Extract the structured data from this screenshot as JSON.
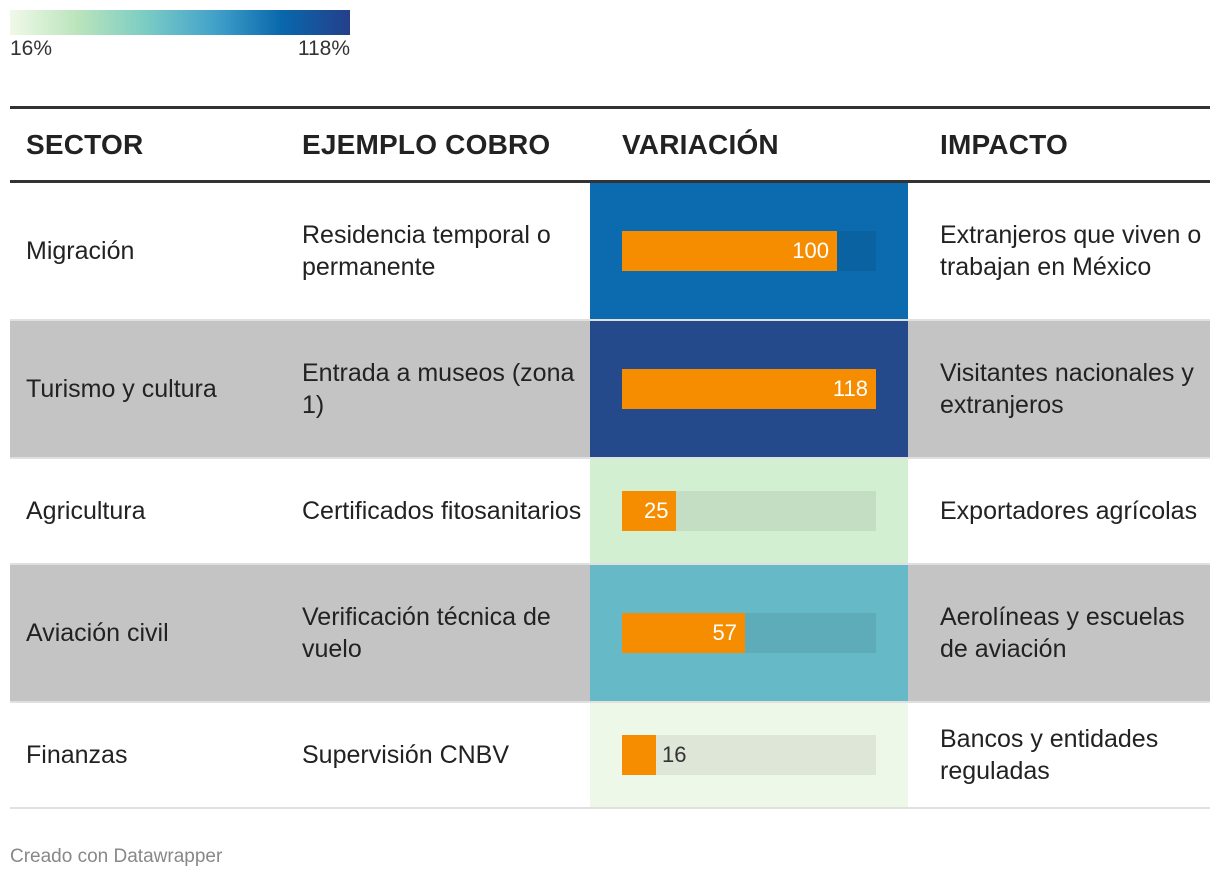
{
  "legend": {
    "min_label": "16%",
    "max_label": "118%",
    "gradient": [
      "#f0f9e8",
      "#bae4bc",
      "#7bccc4",
      "#43a2ca",
      "#0868ac",
      "#253f8a"
    ]
  },
  "columns": {
    "sector": "SECTOR",
    "ejemplo": "EJEMPLO COBRO",
    "variacion": "VARIACIÓN",
    "impacto": "IMPACTO"
  },
  "chart_data": {
    "type": "table",
    "columns": [
      "SECTOR",
      "EJEMPLO COBRO",
      "VARIACIÓN",
      "IMPACTO"
    ],
    "bar_max": 118,
    "rows": [
      {
        "sector": "Migración",
        "ejemplo": "Residencia temporal o permanente",
        "variacion": 100,
        "variacion_label": "100",
        "impacto": "Extranjeros que viven o trabajan en México",
        "cell_color": "#0c6aae"
      },
      {
        "sector": "Turismo y cultura",
        "ejemplo": "Entrada a museos (zona 1)",
        "variacion": 118,
        "variacion_label": "118",
        "impacto": "Visitantes nacionales y extranjeros",
        "cell_color": "#254a8c"
      },
      {
        "sector": "Agricultura",
        "ejemplo": "Certificados fitosanitarios",
        "variacion": 25,
        "variacion_label": "25",
        "impacto": "Exportadores agrícolas",
        "cell_color": "#d3efd2"
      },
      {
        "sector": "Aviación civil",
        "ejemplo": "Verificación técnica de vuelo",
        "variacion": 57,
        "variacion_label": "57",
        "impacto": "Aerolíneas y escuelas de aviación",
        "cell_color": "#66bac7"
      },
      {
        "sector": "Finanzas",
        "ejemplo": "Supervisión CNBV",
        "variacion": 16,
        "variacion_label": "16",
        "impacto": "Bancos y entidades reguladas",
        "cell_color": "#eef8e8"
      }
    ],
    "bar_color": "#f68d00"
  },
  "footer": {
    "credit": "Creado con Datawrapper"
  }
}
